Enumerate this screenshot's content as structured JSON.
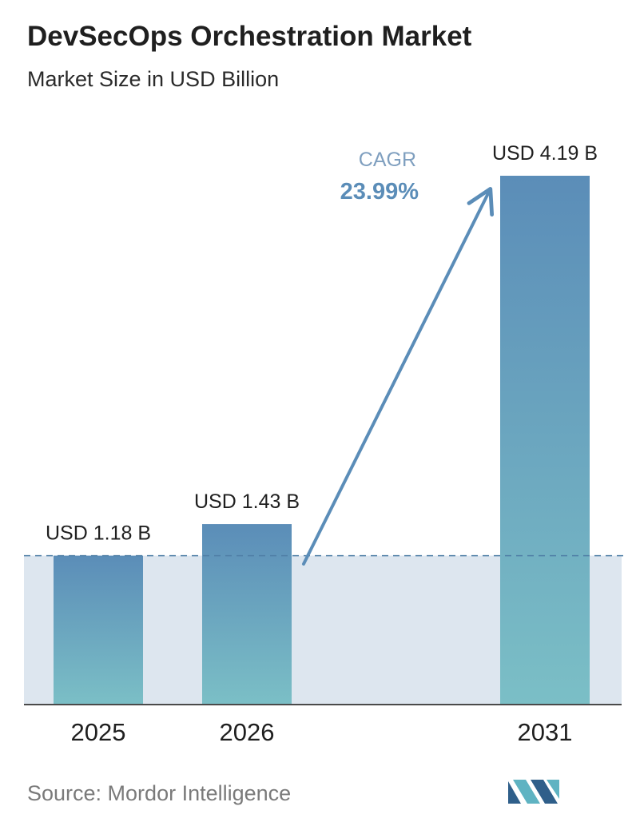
{
  "header": {
    "title": "DevSecOps Orchestration Market",
    "subtitle": "Market Size in USD Billion"
  },
  "footer": {
    "source": "Source: Mordor Intelligence"
  },
  "colors": {
    "bar_top": "#5b8db8",
    "bar_bottom": "#7bbfc6",
    "band": "#dde6ef",
    "dashed_line": "#4f7fa6",
    "arrow": "#5b8db8",
    "cagr_label": "#7f9fbf",
    "cagr_value": "#5b8db8",
    "logo_dark": "#2f5f8a",
    "logo_light": "#5fb3c2"
  },
  "chart_data": {
    "type": "bar",
    "categories": [
      "2025",
      "2026",
      "2031"
    ],
    "values": [
      1.18,
      1.43,
      4.19
    ],
    "data_labels": [
      "USD 1.18 B",
      "USD 1.43 B",
      "USD 4.19 B"
    ],
    "ylim": [
      0,
      4.19
    ],
    "grid": false,
    "annotation": {
      "label": "CAGR",
      "value": "23.99%"
    }
  }
}
